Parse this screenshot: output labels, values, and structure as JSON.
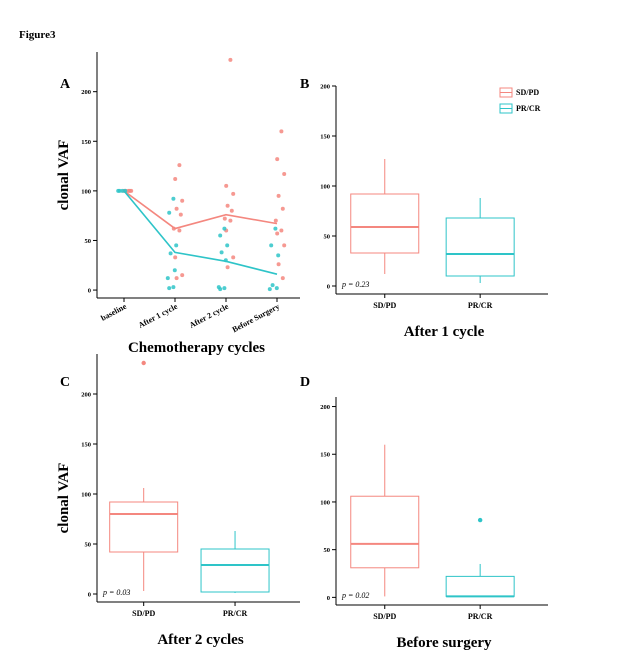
{
  "figure_title": "Figure3",
  "colors": {
    "sd_pd": "#F4877F",
    "pr_cr": "#2EC4C8",
    "axis": "#000000"
  },
  "legend": {
    "items": [
      "SD/PD",
      "PR/CR"
    ],
    "placement": "top-right"
  },
  "chart_data": [
    {
      "panel": "A",
      "type": "line",
      "xlabel": "Chemotherapy cycles",
      "ylabel": "clonal VAF",
      "categories": [
        "baseline",
        "After 1 cycle",
        "After 2 cycle",
        "Before Surgery"
      ],
      "ylim": [
        -8,
        240
      ],
      "yticks": [
        0,
        50,
        100,
        150,
        200
      ],
      "series": [
        {
          "name": "SD/PD",
          "line": [
            100,
            62,
            76,
            67
          ],
          "points": [
            [
              100,
              100,
              100,
              100,
              100
            ],
            [
              126,
              112,
              90,
              82,
              76,
              62,
              60,
              33,
              15,
              12
            ],
            [
              232,
              105,
              97,
              85,
              80,
              72,
              70,
              60,
              33,
              23
            ],
            [
              160,
              132,
              117,
              95,
              82,
              70,
              60,
              57,
              45,
              26,
              12
            ]
          ]
        },
        {
          "name": "PR/CR",
          "line": [
            100,
            38,
            29,
            16
          ],
          "points": [
            [
              100,
              100,
              100,
              100
            ],
            [
              92,
              78,
              45,
              37,
              20,
              12,
              3,
              2
            ],
            [
              62,
              55,
              45,
              38,
              30,
              3,
              2,
              1
            ],
            [
              62,
              45,
              35,
              5,
              2,
              1
            ]
          ]
        }
      ]
    },
    {
      "panel": "B",
      "type": "box",
      "title": "After 1 cycle",
      "categories": [
        "SD/PD",
        "PR/CR"
      ],
      "ylim": [
        -8,
        200
      ],
      "yticks": [
        0,
        50,
        100,
        150,
        200
      ],
      "annotation": "p = 0.23",
      "boxes": [
        {
          "group": "SD/PD",
          "min": 12,
          "q1": 33,
          "median": 59,
          "q3": 92,
          "max": 127,
          "outliers": []
        },
        {
          "group": "PR/CR",
          "min": 3,
          "q1": 10,
          "median": 32,
          "q3": 68,
          "max": 88,
          "outliers": []
        }
      ]
    },
    {
      "panel": "C",
      "type": "box",
      "title": "After 2 cycles",
      "ylabel": "clonal VAF",
      "categories": [
        "SD/PD",
        "PR/CR"
      ],
      "ylim": [
        -8,
        240
      ],
      "yticks": [
        0,
        50,
        100,
        150,
        200
      ],
      "annotation": "p = 0.03",
      "boxes": [
        {
          "group": "SD/PD",
          "min": 3,
          "q1": 42,
          "median": 80,
          "q3": 92,
          "max": 106,
          "outliers": [
            231
          ]
        },
        {
          "group": "PR/CR",
          "min": 1,
          "q1": 2,
          "median": 29,
          "q3": 45,
          "max": 63,
          "outliers": []
        }
      ]
    },
    {
      "panel": "D",
      "type": "box",
      "title": "Before surgery",
      "categories": [
        "SD/PD",
        "PR/CR"
      ],
      "ylim": [
        -8,
        210
      ],
      "yticks": [
        0,
        50,
        100,
        150,
        200
      ],
      "annotation": "p = 0.02",
      "boxes": [
        {
          "group": "SD/PD",
          "min": 1,
          "q1": 31,
          "median": 56,
          "q3": 106,
          "max": 160,
          "outliers": []
        },
        {
          "group": "PR/CR",
          "min": 1,
          "q1": 1,
          "median": 1,
          "q3": 22,
          "max": 35,
          "outliers": [
            81
          ]
        }
      ]
    }
  ]
}
